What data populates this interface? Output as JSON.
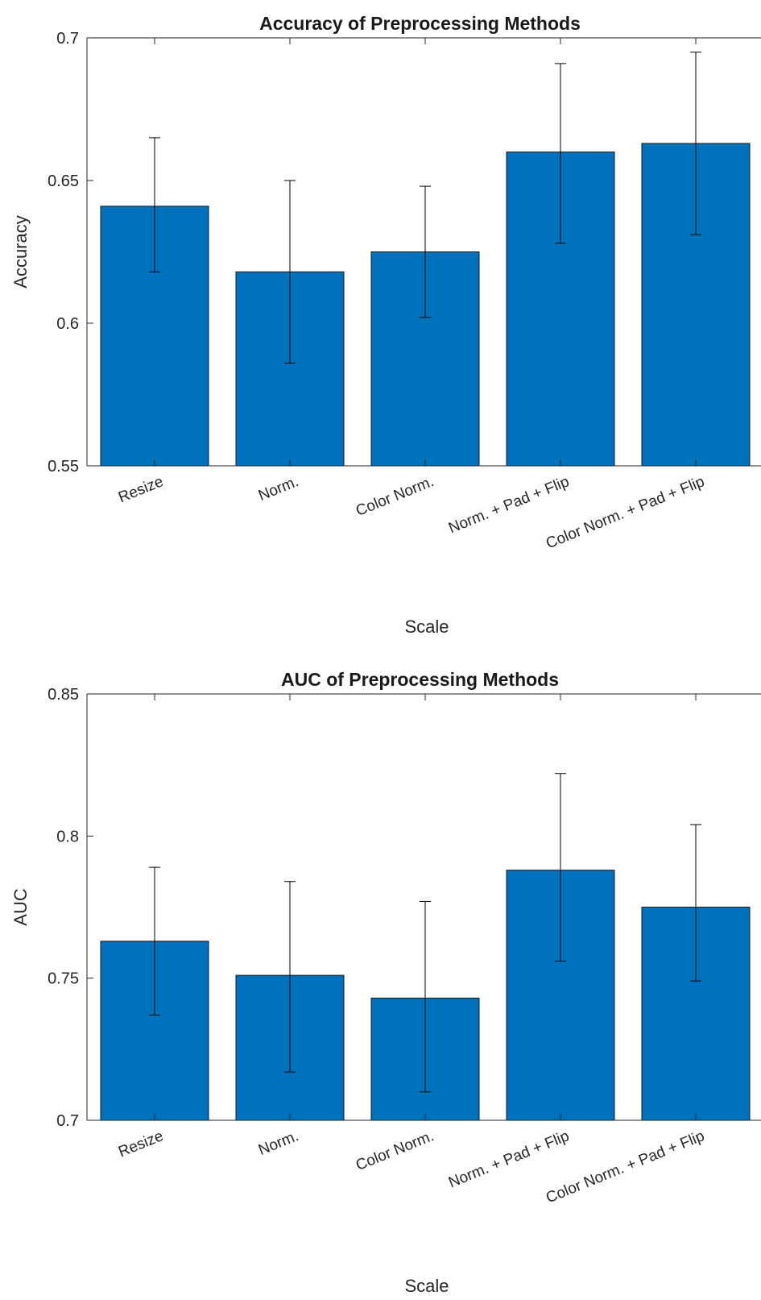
{
  "chart_data": [
    {
      "type": "bar",
      "title": "Accuracy of Preprocessing Methods",
      "xlabel": "Scale",
      "ylabel": "Accuracy",
      "categories": [
        "Resize",
        "Norm.",
        "Color Norm.",
        "Norm. + Pad + Flip",
        "Color Norm. + Pad + Flip"
      ],
      "values": [
        0.641,
        0.618,
        0.625,
        0.66,
        0.663
      ],
      "error_low": [
        0.618,
        0.586,
        0.602,
        0.628,
        0.631
      ],
      "error_high": [
        0.665,
        0.65,
        0.648,
        0.691,
        0.695
      ],
      "ylim": [
        0.55,
        0.7
      ],
      "yticks": [
        "0.55",
        "0.6",
        "0.65",
        "0.7"
      ],
      "bar_color": "#0072BD",
      "grid": false
    },
    {
      "type": "bar",
      "title": "AUC of Preprocessing Methods",
      "xlabel": "Scale",
      "ylabel": "AUC",
      "categories": [
        "Resize",
        "Norm.",
        "Color Norm.",
        "Norm. + Pad + Flip",
        "Color Norm. + Pad + Flip"
      ],
      "values": [
        0.763,
        0.751,
        0.743,
        0.788,
        0.775
      ],
      "error_low": [
        0.737,
        0.717,
        0.71,
        0.756,
        0.749
      ],
      "error_high": [
        0.789,
        0.784,
        0.777,
        0.822,
        0.804
      ],
      "ylim": [
        0.7,
        0.85
      ],
      "yticks": [
        "0.7",
        "0.75",
        "0.8",
        "0.85"
      ],
      "bar_color": "#0072BD",
      "grid": false
    }
  ]
}
